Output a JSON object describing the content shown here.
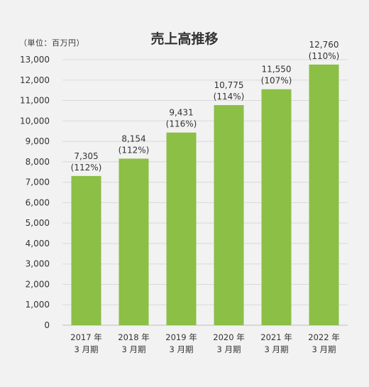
{
  "chart_data": {
    "type": "bar",
    "title": "売上高推移",
    "unit_label": "（単位：百万円）",
    "categories": [
      {
        "year": "2017 年",
        "period": "3 月期"
      },
      {
        "year": "2018 年",
        "period": "3 月期"
      },
      {
        "year": "2019 年",
        "period": "3 月期"
      },
      {
        "year": "2020 年",
        "period": "3 月期"
      },
      {
        "year": "2021 年",
        "period": "3 月期"
      },
      {
        "year": "2022 年",
        "period": "3 月期"
      }
    ],
    "values": [
      7305,
      8154,
      9431,
      10775,
      11550,
      12760
    ],
    "value_labels": [
      "7,305",
      "8,154",
      "9,431",
      "10,775",
      "11,550",
      "12,760"
    ],
    "growth_labels": [
      "(112%)",
      "(112%)",
      "(116%)",
      "(114%)",
      "(107%)",
      "(110%)"
    ],
    "ylim": [
      0,
      13000
    ],
    "yticks": [
      0,
      1000,
      2000,
      3000,
      4000,
      5000,
      6000,
      7000,
      8000,
      9000,
      10000,
      11000,
      12000,
      13000
    ],
    "ytick_labels": [
      "0",
      "1,000",
      "2,000",
      "3,000",
      "4,000",
      "5,000",
      "6,000",
      "7,000",
      "8,000",
      "9,000",
      "10,000",
      "11,000",
      "12,000",
      "13,000"
    ],
    "grid": true,
    "bar_color": "#8bbf45",
    "grid_color": "#d9d9d9"
  }
}
